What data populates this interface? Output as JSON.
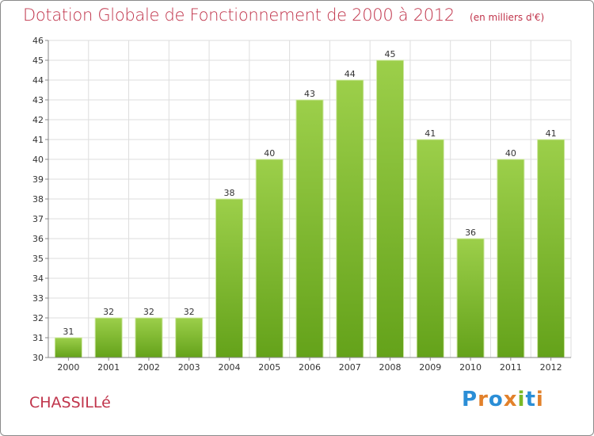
{
  "title": "Dotation Globale de Fonctionnement de 2000 à 2012",
  "subtitle": "(en milliers d'€)",
  "commune": "CHASSILLé",
  "logo": {
    "text": "Proxiti",
    "colors": [
      "#2b8ed6",
      "#e2812b",
      "#2b8ed6",
      "#e2812b",
      "#79b927",
      "#2b8ed6",
      "#e2812b"
    ]
  },
  "colors": {
    "title": "#c0344b",
    "bar_light": "#9ccf4a",
    "bar_dark": "#64a21a",
    "grid": "#dddddd",
    "axis": "#888888"
  },
  "chart_data": {
    "type": "bar",
    "categories": [
      "2000",
      "2001",
      "2002",
      "2003",
      "2004",
      "2005",
      "2006",
      "2007",
      "2008",
      "2009",
      "2010",
      "2011",
      "2012"
    ],
    "values": [
      31,
      32,
      32,
      32,
      38,
      40,
      43,
      44,
      45,
      41,
      36,
      40,
      41
    ],
    "ylim": [
      30,
      46
    ],
    "yticks": [
      30,
      31,
      32,
      33,
      34,
      35,
      36,
      37,
      38,
      39,
      40,
      41,
      42,
      43,
      44,
      45,
      46
    ],
    "grid": true,
    "data_labels": true
  }
}
